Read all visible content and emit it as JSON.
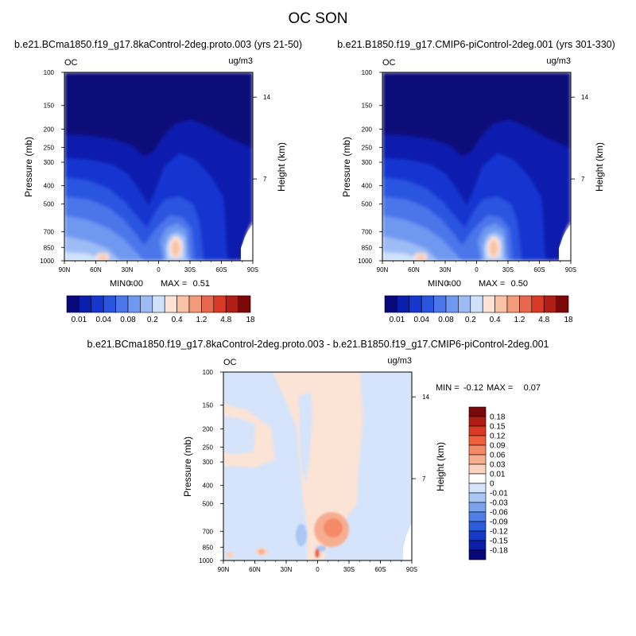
{
  "page": {
    "title": "OC SON"
  },
  "chart_data": [
    {
      "type": "contour",
      "id": "left",
      "title": "b.e21.BCma1850.f19_g17.8kaControl-2deg.proto.003 (yrs 21-50)",
      "variable": "OC",
      "units": "ug/m3",
      "xlabel": "",
      "ylabel": "Pressure (mb)",
      "ylabel_right": "Height (km)",
      "x_ticks": [
        "90N",
        "60N",
        "30N",
        "0",
        "30S",
        "60S",
        "90S"
      ],
      "y_ticks": [
        "100",
        "150",
        "200",
        "250",
        "300",
        "400",
        "500",
        "700",
        "850",
        "1000"
      ],
      "y_ticks_right": [
        "14",
        "7"
      ],
      "min_label": "MIN =",
      "min_value": "0.00",
      "max_label": "MAX =",
      "max_value": "0.51",
      "colorbar": {
        "colors": [
          "#08087a",
          "#0b1fae",
          "#1636d0",
          "#2a55e0",
          "#4c76ea",
          "#6f98f0",
          "#9dbcf5",
          "#cfe1fb",
          "#fde3d6",
          "#f9c2a6",
          "#f39a7c",
          "#e8684f",
          "#d83a25",
          "#b01d14",
          "#7a0808"
        ],
        "labels": [
          "0.01",
          "0.04",
          "0.08",
          "0.2",
          "0.4",
          "1.2",
          "4.8",
          "18"
        ]
      }
    },
    {
      "type": "contour",
      "id": "right",
      "title": "b.e21.B1850.f19_g17.CMIP6-piControl-2deg.001 (yrs 301-330)",
      "variable": "OC",
      "units": "ug/m3",
      "xlabel": "",
      "ylabel": "Pressure (mb)",
      "ylabel_right": "Height (km)",
      "x_ticks": [
        "90N",
        "60N",
        "30N",
        "0",
        "30S",
        "60S",
        "90S"
      ],
      "y_ticks": [
        "100",
        "150",
        "200",
        "250",
        "300",
        "400",
        "500",
        "700",
        "850",
        "1000"
      ],
      "y_ticks_right": [
        "14",
        "7"
      ],
      "min_label": "MIN =",
      "min_value": "0.00",
      "max_label": "MAX =",
      "max_value": "0.50",
      "colorbar": {
        "colors": [
          "#08087a",
          "#0b1fae",
          "#1636d0",
          "#2a55e0",
          "#4c76ea",
          "#6f98f0",
          "#9dbcf5",
          "#cfe1fb",
          "#fde3d6",
          "#f9c2a6",
          "#f39a7c",
          "#e8684f",
          "#d83a25",
          "#b01d14",
          "#7a0808"
        ],
        "labels": [
          "0.01",
          "0.04",
          "0.08",
          "0.2",
          "0.4",
          "1.2",
          "4.8",
          "18"
        ]
      }
    },
    {
      "type": "contour",
      "id": "diff",
      "title": "b.e21.BCma1850.f19_g17.8kaControl-2deg.proto.003 - b.e21.B1850.f19_g17.CMIP6-piControl-2deg.001",
      "variable": "OC",
      "units": "ug/m3",
      "xlabel": "",
      "ylabel": "Pressure (mb)",
      "ylabel_right": "Height (km)",
      "x_ticks": [
        "90N",
        "60N",
        "30N",
        "0",
        "30S",
        "60S",
        "90S"
      ],
      "y_ticks": [
        "100",
        "150",
        "200",
        "250",
        "300",
        "400",
        "500",
        "700",
        "850",
        "1000"
      ],
      "y_ticks_right": [
        "14",
        "7"
      ],
      "min_label": "MIN =",
      "min_value": "-0.12",
      "max_label": "MAX =",
      "max_value": "0.07",
      "colorbar": {
        "colors": [
          "#7a0808",
          "#b01d14",
          "#d83a25",
          "#f0603f",
          "#f48a68",
          "#f7ad90",
          "#fbd2bd",
          "#ffffff",
          "#d5e4fa",
          "#a9c6f4",
          "#7ca4ee",
          "#4f7fe6",
          "#2a5cdc",
          "#1639c8",
          "#0b1fa6",
          "#08087a"
        ],
        "labels": [
          "0.18",
          "0.15",
          "0.12",
          "0.09",
          "0.06",
          "0.03",
          "0.01",
          "0",
          "-0.01",
          "-0.03",
          "-0.06",
          "-0.09",
          "-0.12",
          "-0.15",
          "-0.18"
        ]
      }
    }
  ]
}
